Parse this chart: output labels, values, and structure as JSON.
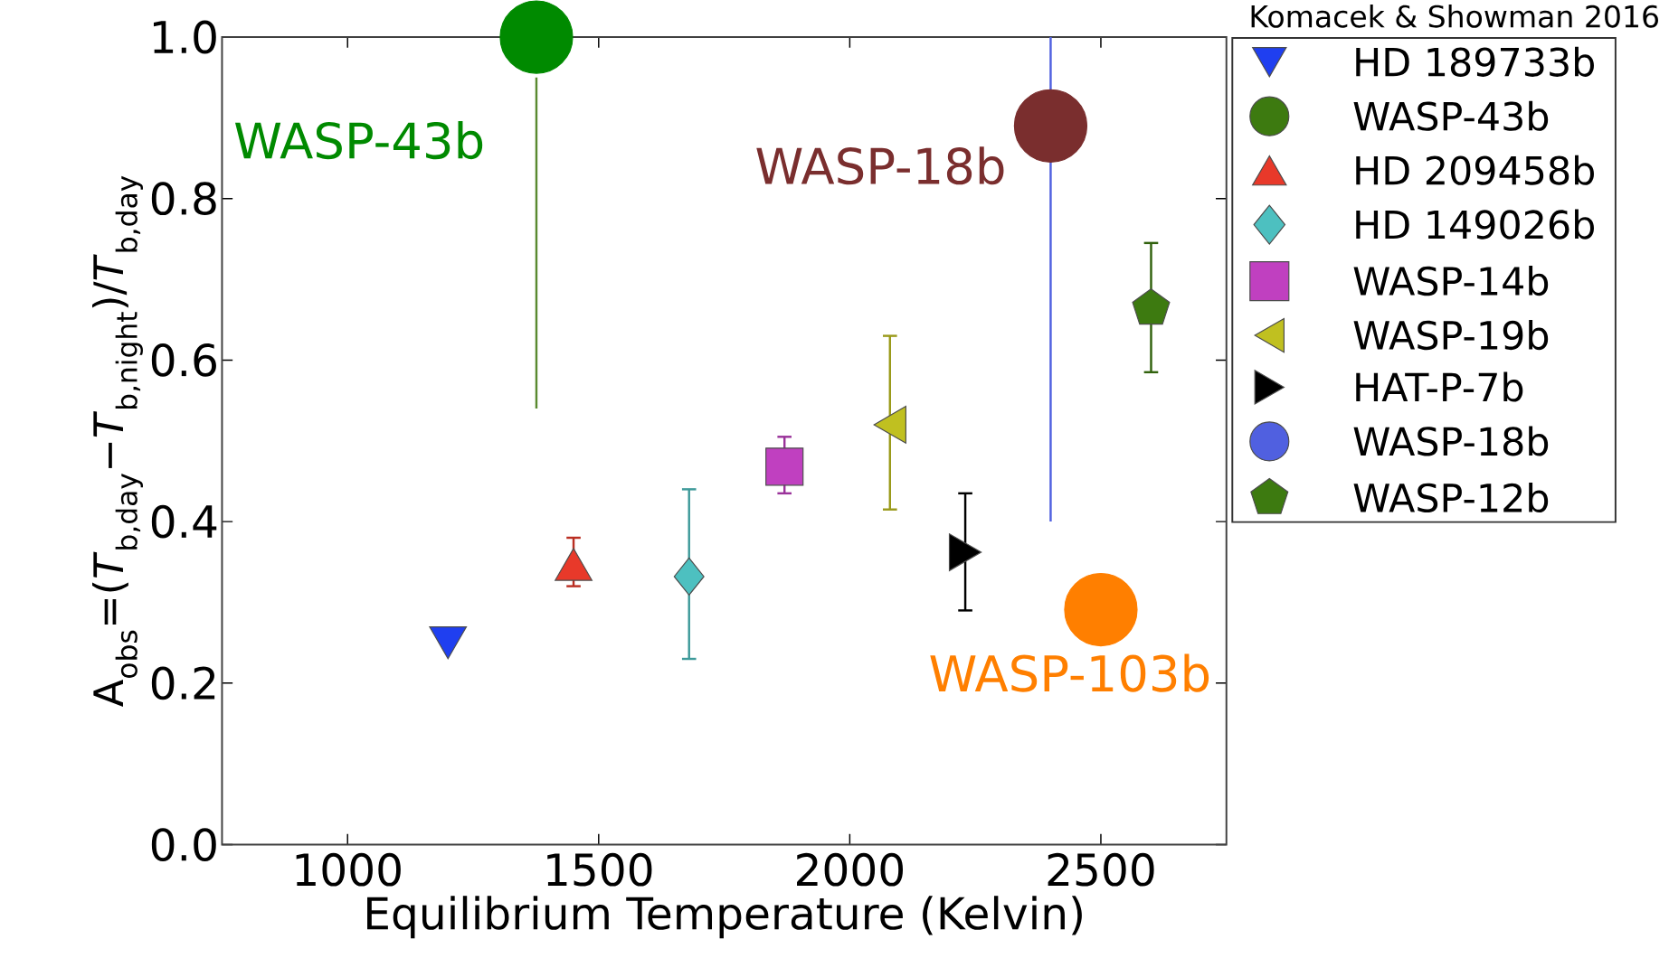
{
  "chart_data": {
    "type": "scatter",
    "xlabel": "Equilibrium Temperature (Kelvin)",
    "ylabel": "A$_{obs}$=(*T*$_{b,day}$−*T*$_{b,night}$)/*T*$_{b,day}$",
    "xlim": [
      750,
      2750
    ],
    "ylim": [
      0,
      1
    ],
    "xticks": [
      1000,
      1500,
      2000,
      2500
    ],
    "yticks": [
      {
        "value": 0,
        "label": "0.0"
      },
      {
        "value": 0.2,
        "label": "0.2"
      },
      {
        "value": 0.4,
        "label": "0.4"
      },
      {
        "value": 0.6,
        "label": "0.6"
      },
      {
        "value": 0.8,
        "label": "0.8"
      },
      {
        "value": 1,
        "label": "1.0"
      }
    ],
    "grid": false,
    "legend": "top right",
    "series": [
      {
        "name": "HD 189733b",
        "color": "#1f3ff0",
        "marker": "triangle-down",
        "x": [
          1200
        ],
        "values": [
          0.25
        ]
      },
      {
        "name": "WASP-43b",
        "color": "#3d7a10",
        "marker": "circle"
      },
      {
        "name": "HD 209458b",
        "color": "#e8392a",
        "marker": "triangle",
        "x": [
          1450
        ],
        "values": [
          0.347
        ],
        "errors": [
          [
            0.32,
            0.38
          ]
        ]
      },
      {
        "name": "HD 149026b",
        "color": "#4dc0c0",
        "marker": "diamond",
        "x": [
          1680
        ],
        "values": [
          0.332
        ],
        "errors": [
          [
            0.23,
            0.44
          ]
        ]
      },
      {
        "name": "WASP-14b",
        "color": "#c040c0",
        "marker": "square",
        "x": [
          1870
        ],
        "values": [
          0.468
        ],
        "errors": [
          [
            0.435,
            0.505
          ]
        ]
      },
      {
        "name": "WASP-19b",
        "color": "#c0c020",
        "marker": "triangle-left",
        "x": [
          2080
        ],
        "values": [
          0.52
        ],
        "errors": [
          [
            0.415,
            0.63
          ]
        ]
      },
      {
        "name": "HAT-P-7b",
        "color": "#000000",
        "marker": "triangle-right",
        "x": [
          2230
        ],
        "values": [
          0.362
        ],
        "errors": [
          [
            0.29,
            0.435
          ]
        ]
      },
      {
        "name": "WASP-18b",
        "color": "#5060e0",
        "marker": "circle"
      },
      {
        "name": "WASP-12b",
        "color": "#3d7a10",
        "x": [
          2600
        ],
        "values": [
          0.664
        ],
        "errors": [
          [
            0.585,
            0.745
          ]
        ]
      },
      {
        "type": "line",
        "color": "#5a8a30",
        "x": [
          1376,
          1376
        ],
        "values": [
          0.54,
          0.95
        ]
      },
      {
        "type": "line",
        "color": "#5060e0",
        "x": [
          2400,
          2400
        ],
        "values": [
          0.4,
          1.0
        ]
      },
      {
        "color": "#008a00",
        "marker": "circle",
        "x": [
          1376
        ],
        "values": [
          1.0
        ]
      },
      {
        "color": "#7a2e2e",
        "marker": "circle",
        "x": [
          2400
        ],
        "values": [
          0.89
        ]
      },
      {
        "color": "#ff7f00",
        "marker": "circle",
        "x": [
          2500
        ],
        "values": [
          0.291
        ]
      }
    ],
    "annotations": [
      {
        "text": "WASP-43b",
        "x": 1376,
        "y": 1.0
      },
      {
        "text": "WASP-18b",
        "x": 2400,
        "y": 0.89
      },
      {
        "text": "WASP-103b",
        "x": 2500,
        "y": 0.291
      },
      "Komacek & Showman 2016"
    ]
  }
}
